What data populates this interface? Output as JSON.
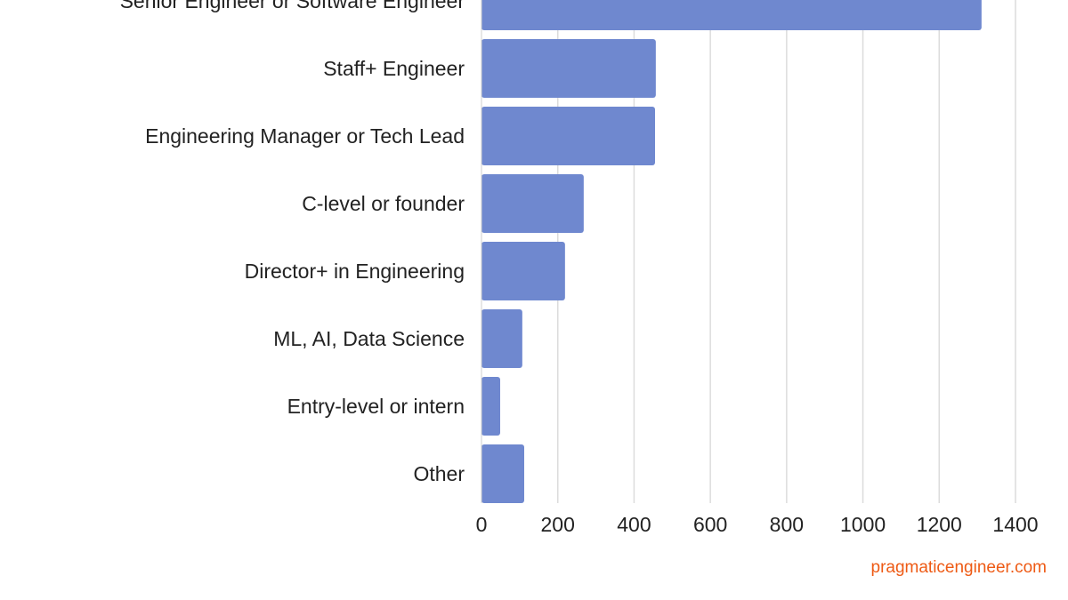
{
  "chart_data": {
    "type": "bar",
    "orientation": "horizontal",
    "categories": [
      "Senior Engineer or Software Engineer",
      "Staff+ Engineer",
      "Engineering Manager or Tech Lead",
      "C-level or founder",
      "Director+ in Engineering",
      "ML, AI, Data Science",
      "Entry-level or intern",
      "Other"
    ],
    "values": [
      1311,
      457,
      455,
      268,
      219,
      107,
      49,
      112
    ],
    "xlim": [
      0,
      1400
    ],
    "xticks": [
      "0",
      "200",
      "400",
      "600",
      "800",
      "1000",
      "1200",
      "1400"
    ],
    "grid": "vertical",
    "bar_color": "#6f88cf",
    "title": "",
    "xlabel": "",
    "ylabel": ""
  },
  "watermark": {
    "text": "pragmaticengineer.com",
    "color": "#ee5a14"
  }
}
